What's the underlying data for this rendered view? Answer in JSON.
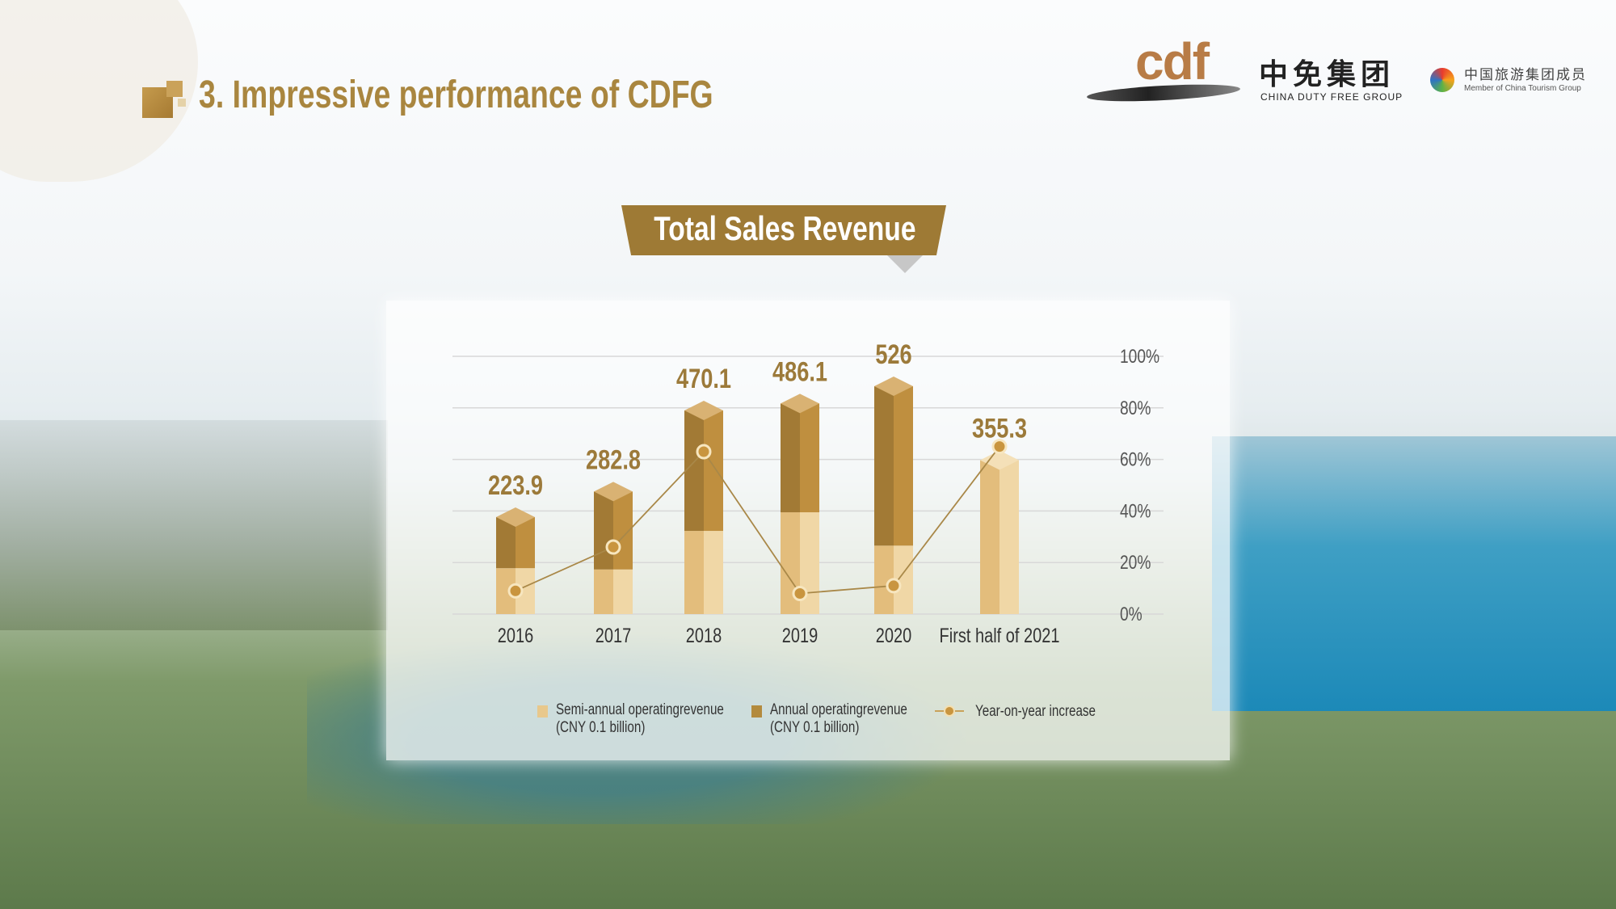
{
  "header": {
    "title": "3. Impressive performance of CDFG"
  },
  "logos": {
    "brand": "cdf",
    "brand_cn": "中免集团",
    "brand_en": "CHINA DUTY FREE GROUP",
    "member_cn": "中国旅游集团成员",
    "member_en": "Member of China Tourism Group"
  },
  "colors": {
    "accent": "#a9863f",
    "semi_annual": "#e8c88c",
    "annual": "#b38a3d",
    "line": "#a98848"
  },
  "chart_data": {
    "type": "bar",
    "title": "Total Sales Revenue",
    "categories": [
      "2016",
      "2017",
      "2018",
      "2019",
      "2020",
      "First half of 2021"
    ],
    "totals_labels": [
      "223.9",
      "282.8",
      "470.1",
      "486.1",
      "526",
      "355.3"
    ],
    "series": [
      {
        "name": "Semi-annual operatingrevenue (CNY 0.1 billion)",
        "values": [
          106,
          103,
          192,
          235,
          158,
          355.3
        ]
      },
      {
        "name": "Annual operatingrevenue (CNY 0.1 billion)",
        "values": [
          223.9,
          282.8,
          470.1,
          486.1,
          526,
          null
        ]
      },
      {
        "name": "Year-on-year increase",
        "type": "line",
        "axis": "right",
        "values": [
          9,
          26,
          63,
          8,
          11,
          65
        ]
      }
    ],
    "y_right": {
      "ticks": [
        "0%",
        "20%",
        "40%",
        "60%",
        "80%",
        "100%"
      ],
      "range": [
        0,
        100
      ]
    },
    "ylim": [
      0,
      580
    ],
    "grid": true,
    "legend_position": "bottom",
    "legend": [
      {
        "line1": "Semi-annual operatingrevenue",
        "line2": "(CNY 0.1 billion)"
      },
      {
        "line1": "Annual operatingrevenue",
        "line2": "(CNY 0.1 billion)"
      },
      {
        "line1": "Year-on-year increase",
        "line2": ""
      }
    ]
  }
}
